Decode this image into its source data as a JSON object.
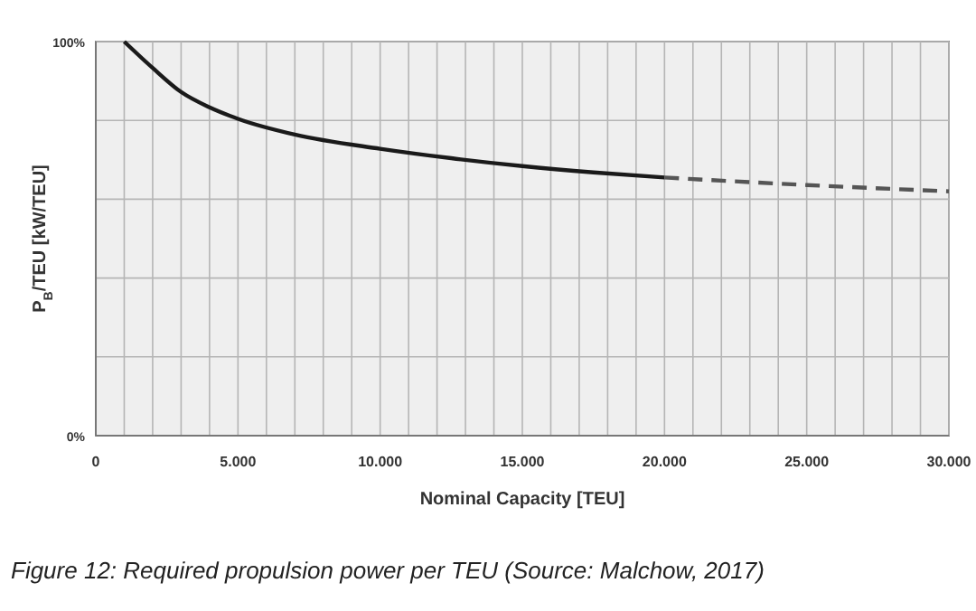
{
  "chart_data": {
    "type": "line",
    "xlabel": "Nominal Capacity [TEU]",
    "ylabel": "P$_{B}$/TEU [kW/TEU]",
    "annotations": [
      "Figure 12: Required propulsion power per TEU (Source: Malchow, 2017)"
    ],
    "xlim": [
      0,
      30000
    ],
    "ylim": [
      0,
      100
    ],
    "xticks": [
      {
        "value": 0,
        "label": "0"
      },
      {
        "value": 1000,
        "label": null
      },
      {
        "value": 2000,
        "label": null
      },
      {
        "value": 3000,
        "label": null
      },
      {
        "value": 4000,
        "label": null
      },
      {
        "value": 5000,
        "label": "5.000"
      },
      {
        "value": 6000,
        "label": null
      },
      {
        "value": 7000,
        "label": null
      },
      {
        "value": 8000,
        "label": null
      },
      {
        "value": 9000,
        "label": null
      },
      {
        "value": 10000,
        "label": "10.000"
      },
      {
        "value": 11000,
        "label": null
      },
      {
        "value": 12000,
        "label": null
      },
      {
        "value": 13000,
        "label": null
      },
      {
        "value": 14000,
        "label": null
      },
      {
        "value": 15000,
        "label": "15.000"
      },
      {
        "value": 16000,
        "label": null
      },
      {
        "value": 17000,
        "label": null
      },
      {
        "value": 18000,
        "label": null
      },
      {
        "value": 19000,
        "label": null
      },
      {
        "value": 20000,
        "label": "20.000"
      },
      {
        "value": 21000,
        "label": null
      },
      {
        "value": 22000,
        "label": null
      },
      {
        "value": 23000,
        "label": null
      },
      {
        "value": 24000,
        "label": null
      },
      {
        "value": 25000,
        "label": "25.000"
      },
      {
        "value": 26000,
        "label": null
      },
      {
        "value": 27000,
        "label": null
      },
      {
        "value": 28000,
        "label": null
      },
      {
        "value": 29000,
        "label": null
      },
      {
        "value": 30000,
        "label": "30.000"
      }
    ],
    "yticks": [
      {
        "value": 0,
        "label": "0%"
      },
      {
        "value": 20,
        "label": null
      },
      {
        "value": 40,
        "label": null
      },
      {
        "value": 60,
        "label": null
      },
      {
        "value": 80,
        "label": null
      },
      {
        "value": 100,
        "label": "100%"
      }
    ],
    "grid": true,
    "series": [
      {
        "color": "#1a1a1a",
        "line_style": "solid",
        "x": [
          1000,
          2000,
          3000,
          4000,
          5000,
          7000,
          10000,
          12500,
          15000,
          17500,
          20000
        ],
        "values": [
          100,
          93.3,
          87.2,
          83.3,
          80.4,
          76.4,
          72.8,
          70.4,
          68.4,
          66.8,
          65.5
        ]
      },
      {
        "color": "#555555",
        "line_style": "dashed",
        "x": [
          20000,
          25000,
          30000
        ],
        "values": [
          65.5,
          63.6,
          62
        ]
      }
    ]
  }
}
